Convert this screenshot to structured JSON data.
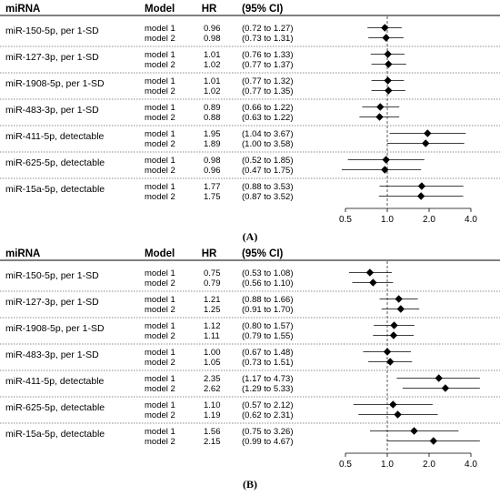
{
  "headers": {
    "mirna": "miRNA",
    "model": "Model",
    "hr": "HR",
    "ci": "(95% CI)"
  },
  "chart_data": [
    {
      "type": "forest",
      "caption": "(A)",
      "scale": "log",
      "xlim": [
        0.5,
        4.0
      ],
      "xticks": [
        "0.5",
        "1.0",
        "2.0",
        "4.0"
      ],
      "xtick_values": [
        0.5,
        1.0,
        2.0,
        4.0
      ],
      "reference_line": 1.0,
      "groups": [
        {
          "label": "miR-150-5p, per 1-SD",
          "rows": [
            {
              "model": "model 1",
              "hr": 0.96,
              "hr_text": "0.96",
              "lo": 0.72,
              "hi": 1.27,
              "ci_text": "(0.72 to 1.27)"
            },
            {
              "model": "model 2",
              "hr": 0.98,
              "hr_text": "0.98",
              "lo": 0.73,
              "hi": 1.31,
              "ci_text": "(0.73 to 1.31)"
            }
          ]
        },
        {
          "label": "miR-127-3p, per 1-SD",
          "rows": [
            {
              "model": "model 1",
              "hr": 1.01,
              "hr_text": "1.01",
              "lo": 0.76,
              "hi": 1.33,
              "ci_text": "(0.76 to 1.33)"
            },
            {
              "model": "model 2",
              "hr": 1.02,
              "hr_text": "1.02",
              "lo": 0.77,
              "hi": 1.37,
              "ci_text": "(0.77 to 1.37)"
            }
          ]
        },
        {
          "label": "miR-1908-5p, per 1-SD",
          "rows": [
            {
              "model": "model 1",
              "hr": 1.01,
              "hr_text": "1.01",
              "lo": 0.77,
              "hi": 1.32,
              "ci_text": "(0.77 to 1.32)"
            },
            {
              "model": "model 2",
              "hr": 1.02,
              "hr_text": "1.02",
              "lo": 0.77,
              "hi": 1.35,
              "ci_text": "(0.77 to 1.35)"
            }
          ]
        },
        {
          "label": "miR-483-3p, per 1-SD",
          "rows": [
            {
              "model": "model 1",
              "hr": 0.89,
              "hr_text": "0.89",
              "lo": 0.66,
              "hi": 1.22,
              "ci_text": "(0.66 to 1.22)"
            },
            {
              "model": "model 2",
              "hr": 0.88,
              "hr_text": "0.88",
              "lo": 0.63,
              "hi": 1.22,
              "ci_text": "(0.63 to 1.22)"
            }
          ]
        },
        {
          "label": "miR-411-5p, detectable",
          "rows": [
            {
              "model": "model 1",
              "hr": 1.95,
              "hr_text": "1.95",
              "lo": 1.04,
              "hi": 3.67,
              "ci_text": "(1.04 to 3.67)"
            },
            {
              "model": "model 2",
              "hr": 1.89,
              "hr_text": "1.89",
              "lo": 1.0,
              "hi": 3.58,
              "ci_text": "(1.00 to 3.58)"
            }
          ]
        },
        {
          "label": "miR-625-5p, detectable",
          "rows": [
            {
              "model": "model 1",
              "hr": 0.98,
              "hr_text": "0.98",
              "lo": 0.52,
              "hi": 1.85,
              "ci_text": "(0.52 to 1.85)"
            },
            {
              "model": "model 2",
              "hr": 0.96,
              "hr_text": "0.96",
              "lo": 0.47,
              "hi": 1.75,
              "ci_text": "(0.47 to 1.75)"
            }
          ]
        },
        {
          "label": "miR-15a-5p, detectable",
          "rows": [
            {
              "model": "model 1",
              "hr": 1.77,
              "hr_text": "1.77",
              "lo": 0.88,
              "hi": 3.53,
              "ci_text": "(0.88 to 3.53)"
            },
            {
              "model": "model 2",
              "hr": 1.75,
              "hr_text": "1.75",
              "lo": 0.87,
              "hi": 3.52,
              "ci_text": "(0.87 to 3.52)"
            }
          ]
        }
      ]
    },
    {
      "type": "forest",
      "caption": "(B)",
      "scale": "log",
      "xlim": [
        0.5,
        4.0
      ],
      "xticks": [
        "0.5",
        "1.0",
        "2.0",
        "4.0"
      ],
      "xtick_values": [
        0.5,
        1.0,
        2.0,
        4.0
      ],
      "reference_line": 1.0,
      "groups": [
        {
          "label": "miR-150-5p, per 1-SD",
          "rows": [
            {
              "model": "model 1",
              "hr": 0.75,
              "hr_text": "0.75",
              "lo": 0.53,
              "hi": 1.08,
              "ci_text": "(0.53 to 1.08)"
            },
            {
              "model": "model 2",
              "hr": 0.79,
              "hr_text": "0.79",
              "lo": 0.56,
              "hi": 1.1,
              "ci_text": "(0.56 to 1.10)"
            }
          ]
        },
        {
          "label": "miR-127-3p, per 1-SD",
          "rows": [
            {
              "model": "model 1",
              "hr": 1.21,
              "hr_text": "1.21",
              "lo": 0.88,
              "hi": 1.66,
              "ci_text": "(0.88 to 1.66)"
            },
            {
              "model": "model 2",
              "hr": 1.25,
              "hr_text": "1.25",
              "lo": 0.91,
              "hi": 1.7,
              "ci_text": "(0.91 to 1.70)"
            }
          ]
        },
        {
          "label": "miR-1908-5p, per 1-SD",
          "rows": [
            {
              "model": "model 1",
              "hr": 1.12,
              "hr_text": "1.12",
              "lo": 0.8,
              "hi": 1.57,
              "ci_text": "(0.80 to 1.57)"
            },
            {
              "model": "model 2",
              "hr": 1.11,
              "hr_text": "1.11",
              "lo": 0.79,
              "hi": 1.55,
              "ci_text": "(0.79 to 1.55)"
            }
          ]
        },
        {
          "label": "miR-483-3p, per 1-SD",
          "rows": [
            {
              "model": "model 1",
              "hr": 1.0,
              "hr_text": "1.00",
              "lo": 0.67,
              "hi": 1.48,
              "ci_text": "(0.67 to 1.48)"
            },
            {
              "model": "model 2",
              "hr": 1.05,
              "hr_text": "1.05",
              "lo": 0.73,
              "hi": 1.51,
              "ci_text": "(0.73 to 1.51)"
            }
          ]
        },
        {
          "label": "miR-411-5p, detectable",
          "rows": [
            {
              "model": "model 1",
              "hr": 2.35,
              "hr_text": "2.35",
              "lo": 1.17,
              "hi": 4.73,
              "ci_text": "(1.17 to 4.73)"
            },
            {
              "model": "model 2",
              "hr": 2.62,
              "hr_text": "2.62",
              "lo": 1.29,
              "hi": 5.33,
              "ci_text": "(1.29 to 5.33)"
            }
          ]
        },
        {
          "label": "miR-625-5p, detectable",
          "rows": [
            {
              "model": "model 1",
              "hr": 1.1,
              "hr_text": "1.10",
              "lo": 0.57,
              "hi": 2.12,
              "ci_text": "(0.57 to 2.12)"
            },
            {
              "model": "model 2",
              "hr": 1.19,
              "hr_text": "1.19",
              "lo": 0.62,
              "hi": 2.31,
              "ci_text": "(0.62 to 2.31)"
            }
          ]
        },
        {
          "label": "miR-15a-5p, detectable",
          "rows": [
            {
              "model": "model 1",
              "hr": 1.56,
              "hr_text": "1.56",
              "lo": 0.75,
              "hi": 3.26,
              "ci_text": "(0.75 to 3.26)"
            },
            {
              "model": "model 2",
              "hr": 2.15,
              "hr_text": "2.15",
              "lo": 0.99,
              "hi": 4.67,
              "ci_text": "(0.99 to 4.67)"
            }
          ]
        }
      ]
    }
  ]
}
